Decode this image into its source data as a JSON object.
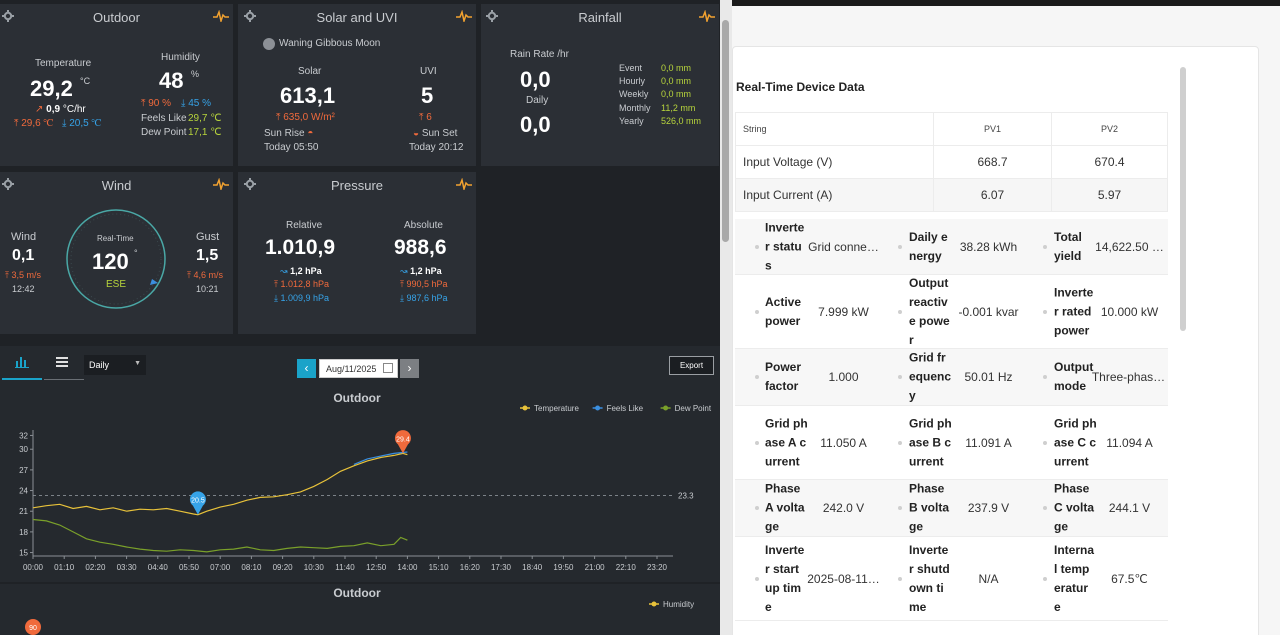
{
  "outdoor": {
    "title": "Outdoor",
    "temp_label": "Temperature",
    "temp_value": "29,2",
    "temp_unit": "°C",
    "temp_rate": "0,9",
    "temp_rate_unit": "°C/hr",
    "temp_high": "29,6 ℃",
    "temp_low": "20,5 ℃",
    "hum_label": "Humidity",
    "hum_value": "48",
    "hum_unit": "%",
    "hum_high": "90 %",
    "hum_low": "45 %",
    "feels_label": "Feels Like",
    "feels_value": "29,7 ℃",
    "dew_label": "Dew Point",
    "dew_value": "17,1 ℃"
  },
  "solar": {
    "title": "Solar and UVI",
    "moon": "Waning Gibbous Moon",
    "solar_label": "Solar",
    "solar_value": "613,1",
    "solar_max": "635,0 W/m²",
    "uvi_label": "UVI",
    "uvi_value": "5",
    "uvi_max": "6",
    "sunrise_label": "Sun Rise",
    "sunrise_time": "Today 05:50",
    "sunset_label": "Sun Set",
    "sunset_time": "Today 20:12"
  },
  "rainfall": {
    "title": "Rainfall",
    "rate_label": "Rain Rate /hr",
    "rate_value": "0,0",
    "daily_label": "Daily",
    "daily_value": "0,0",
    "rows": [
      {
        "label": "Event",
        "value": "0,0 mm"
      },
      {
        "label": "Hourly",
        "value": "0,0 mm"
      },
      {
        "label": "Weekly",
        "value": "0,0 mm"
      },
      {
        "label": "Monthly",
        "value": "11,2 mm"
      },
      {
        "label": "Yearly",
        "value": "526,0 mm"
      }
    ]
  },
  "wind": {
    "title": "Wind",
    "wind_label": "Wind",
    "wind_value": "0,1",
    "wind_max": "3,5 m/s",
    "wind_time": "12:42",
    "realtime_label": "Real-Time",
    "direction_deg": "120",
    "deg_symbol": "°",
    "direction": "ESE",
    "gust_label": "Gust",
    "gust_value": "1,5",
    "gust_max": "4,6 m/s",
    "gust_time": "10:21"
  },
  "pressure": {
    "title": "Pressure",
    "rel_label": "Relative",
    "rel_value": "1.010,9",
    "rel_trend": "1,2 hPa",
    "rel_high": "1.012,8 hPa",
    "rel_low": "1.009,9 hPa",
    "abs_label": "Absolute",
    "abs_value": "988,6",
    "abs_trend": "1,2 hPa",
    "abs_high": "990,5 hPa",
    "abs_low": "987,6 hPa"
  },
  "toolbar": {
    "period": "Daily",
    "date": "Aug/11/2025",
    "export": "Export"
  },
  "chart_data": [
    {
      "type": "line",
      "title": "Outdoor",
      "x_ticks": [
        "00:00",
        "01:10",
        "02:20",
        "03:30",
        "04:40",
        "05:50",
        "07:00",
        "08:10",
        "09:20",
        "10:30",
        "11:40",
        "12:50",
        "14:00",
        "15:10",
        "16:20",
        "17:30",
        "18:40",
        "19:50",
        "21:00",
        "22:10",
        "23:20"
      ],
      "y_ticks": [
        15,
        18,
        21,
        24,
        27,
        30,
        32
      ],
      "ylim": [
        14.5,
        32.5
      ],
      "average_line": 23.3,
      "average_label": "23.3",
      "max_marker": {
        "x": "13:50",
        "value": 29.4,
        "label": "29.4"
      },
      "min_marker": {
        "x": "06:10",
        "value": 20.5,
        "label": "20.5"
      },
      "series": [
        {
          "name": "Temperature",
          "color": "#e8c23a",
          "points": [
            [
              0,
              21.5
            ],
            [
              30,
              21.8
            ],
            [
              60,
              22.0
            ],
            [
              90,
              21.4
            ],
            [
              120,
              21.7
            ],
            [
              150,
              21.2
            ],
            [
              180,
              21.5
            ],
            [
              210,
              21.0
            ],
            [
              240,
              21.3
            ],
            [
              270,
              21.2
            ],
            [
              300,
              21.4
            ],
            [
              330,
              21.0
            ],
            [
              360,
              20.6
            ],
            [
              370,
              20.5
            ],
            [
              390,
              21.0
            ],
            [
              420,
              21.6
            ],
            [
              450,
              22.0
            ],
            [
              480,
              22.6
            ],
            [
              510,
              23.0
            ],
            [
              540,
              23.1
            ],
            [
              570,
              23.4
            ],
            [
              600,
              23.8
            ],
            [
              630,
              24.6
            ],
            [
              660,
              25.6
            ],
            [
              690,
              26.8
            ],
            [
              720,
              27.6
            ],
            [
              750,
              28.3
            ],
            [
              780,
              28.8
            ],
            [
              810,
              29.1
            ],
            [
              830,
              29.4
            ],
            [
              840,
              29.2
            ]
          ]
        },
        {
          "name": "Feels Like",
          "color": "#3b8fe0",
          "points": [
            [
              720,
              27.8
            ],
            [
              750,
              28.6
            ],
            [
              780,
              29.0
            ],
            [
              810,
              29.4
            ],
            [
              840,
              29.6
            ]
          ]
        },
        {
          "name": "Dew Point",
          "color": "#7aa02a",
          "points": [
            [
              0,
              19.8
            ],
            [
              30,
              19.6
            ],
            [
              60,
              19.0
            ],
            [
              90,
              18.0
            ],
            [
              120,
              17.0
            ],
            [
              150,
              16.5
            ],
            [
              180,
              16.2
            ],
            [
              210,
              15.8
            ],
            [
              240,
              15.5
            ],
            [
              270,
              15.3
            ],
            [
              300,
              15.2
            ],
            [
              330,
              15.4
            ],
            [
              360,
              15.3
            ],
            [
              390,
              15.1
            ],
            [
              420,
              15.4
            ],
            [
              450,
              15.5
            ],
            [
              480,
              15.8
            ],
            [
              510,
              15.4
            ],
            [
              540,
              15.3
            ],
            [
              570,
              15.6
            ],
            [
              600,
              15.8
            ],
            [
              630,
              15.7
            ],
            [
              660,
              15.6
            ],
            [
              690,
              15.9
            ],
            [
              720,
              16.0
            ],
            [
              750,
              16.4
            ],
            [
              780,
              16.0
            ],
            [
              810,
              16.2
            ],
            [
              825,
              17.2
            ],
            [
              840,
              16.8
            ]
          ]
        }
      ]
    },
    {
      "type": "line",
      "title": "Outdoor",
      "series": [
        {
          "name": "Humidity",
          "color": "#e8c23a"
        }
      ],
      "max_marker": {
        "label": "90"
      }
    }
  ],
  "device": {
    "heading": "Real-Time Device Data",
    "string_header": [
      "String",
      "PV1",
      "PV2"
    ],
    "string_rows": [
      [
        "Input Voltage (V)",
        "668.7",
        "670.4"
      ],
      [
        "Input Current (A)",
        "6.07",
        "5.97"
      ]
    ],
    "rows": [
      [
        {
          "k": "Inverter status",
          "v": "Grid conne…"
        },
        {
          "k": "Daily energy",
          "v": "38.28 kWh"
        },
        {
          "k": "Total yield",
          "v": "14,622.50 …"
        }
      ],
      [
        {
          "k": "Active power",
          "v": "7.999 kW"
        },
        {
          "k": "Output reactive power",
          "v": "-0.001 kvar"
        },
        {
          "k": "Inverter rated power",
          "v": "10.000 kW"
        }
      ],
      [
        {
          "k": "Power factor",
          "v": "1.000"
        },
        {
          "k": "Grid frequency",
          "v": "50.01 Hz"
        },
        {
          "k": "Output mode",
          "v": "Three-phas…"
        }
      ],
      [
        {
          "k": "Grid phase A current",
          "v": "11.050 A"
        },
        {
          "k": "Grid phase B current",
          "v": "11.091 A"
        },
        {
          "k": "Grid phase C current",
          "v": "11.094 A"
        }
      ],
      [
        {
          "k": "Phase A voltage",
          "v": "242.0 V"
        },
        {
          "k": "Phase B voltage",
          "v": "237.9 V"
        },
        {
          "k": "Phase C voltage",
          "v": "244.1 V"
        }
      ],
      [
        {
          "k": "Inverter startup time",
          "v": "2025-08-11…"
        },
        {
          "k": "Inverter shutdown time",
          "v": "N/A"
        },
        {
          "k": "Internal temperature",
          "v": "67.5℃"
        }
      ]
    ]
  }
}
